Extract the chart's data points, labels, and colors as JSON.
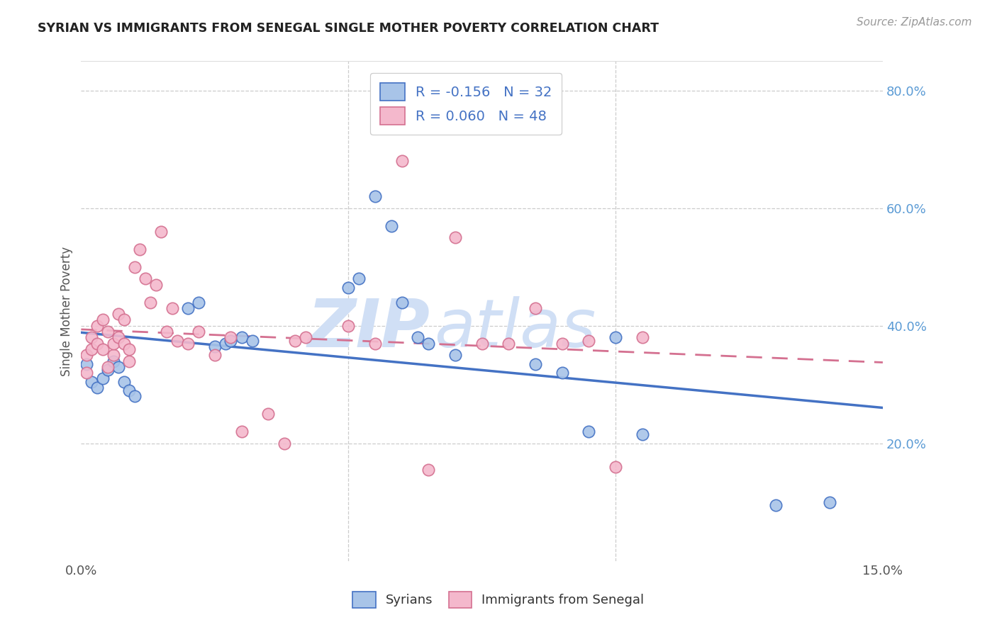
{
  "title": "SYRIAN VS IMMIGRANTS FROM SENEGAL SINGLE MOTHER POVERTY CORRELATION CHART",
  "source": "Source: ZipAtlas.com",
  "ylabel": "Single Mother Poverty",
  "legend_labels": [
    "Syrians",
    "Immigrants from Senegal"
  ],
  "legend_R_syrian": "R = -0.156",
  "legend_N_syrian": "N = 32",
  "legend_R_senegal": "R = 0.060",
  "legend_N_senegal": "N = 48",
  "xlim": [
    0.0,
    0.15
  ],
  "ylim": [
    0.0,
    0.85
  ],
  "yticks": [
    0.2,
    0.4,
    0.6,
    0.8
  ],
  "ytick_labels": [
    "20.0%",
    "40.0%",
    "60.0%",
    "80.0%"
  ],
  "xticks": [
    0.0,
    0.05,
    0.1,
    0.15
  ],
  "xtick_labels": [
    "0.0%",
    "",
    "",
    "15.0%"
  ],
  "color_syrian_fill": "#a8c4e8",
  "color_syrian_edge": "#4472c4",
  "color_senegal_fill": "#f4b8cc",
  "color_senegal_edge": "#d47090",
  "color_line_syrian": "#4472c4",
  "color_line_senegal": "#d47090",
  "watermark": "ZIPatlas",
  "watermark_color": "#d0dff5",
  "syrian_x": [
    0.001,
    0.002,
    0.003,
    0.004,
    0.005,
    0.006,
    0.007,
    0.008,
    0.009,
    0.01,
    0.02,
    0.022,
    0.025,
    0.027,
    0.028,
    0.03,
    0.032,
    0.05,
    0.052,
    0.055,
    0.058,
    0.06,
    0.063,
    0.065,
    0.07,
    0.085,
    0.09,
    0.095,
    0.1,
    0.105,
    0.13,
    0.14
  ],
  "syrian_y": [
    0.335,
    0.305,
    0.295,
    0.31,
    0.325,
    0.34,
    0.33,
    0.305,
    0.29,
    0.28,
    0.43,
    0.44,
    0.365,
    0.37,
    0.375,
    0.38,
    0.375,
    0.465,
    0.48,
    0.62,
    0.57,
    0.44,
    0.38,
    0.37,
    0.35,
    0.335,
    0.32,
    0.22,
    0.38,
    0.215,
    0.095,
    0.1
  ],
  "senegal_x": [
    0.001,
    0.001,
    0.002,
    0.002,
    0.003,
    0.003,
    0.004,
    0.004,
    0.005,
    0.005,
    0.006,
    0.006,
    0.007,
    0.007,
    0.008,
    0.008,
    0.009,
    0.009,
    0.01,
    0.011,
    0.012,
    0.013,
    0.014,
    0.015,
    0.016,
    0.017,
    0.018,
    0.02,
    0.022,
    0.025,
    0.028,
    0.03,
    0.035,
    0.038,
    0.04,
    0.042,
    0.05,
    0.055,
    0.06,
    0.065,
    0.07,
    0.075,
    0.08,
    0.085,
    0.09,
    0.095,
    0.1,
    0.105
  ],
  "senegal_y": [
    0.35,
    0.32,
    0.36,
    0.38,
    0.37,
    0.4,
    0.41,
    0.36,
    0.39,
    0.33,
    0.35,
    0.37,
    0.38,
    0.42,
    0.41,
    0.37,
    0.34,
    0.36,
    0.5,
    0.53,
    0.48,
    0.44,
    0.47,
    0.56,
    0.39,
    0.43,
    0.375,
    0.37,
    0.39,
    0.35,
    0.38,
    0.22,
    0.25,
    0.2,
    0.375,
    0.38,
    0.4,
    0.37,
    0.68,
    0.155,
    0.55,
    0.37,
    0.37,
    0.43,
    0.37,
    0.375,
    0.16,
    0.38
  ]
}
